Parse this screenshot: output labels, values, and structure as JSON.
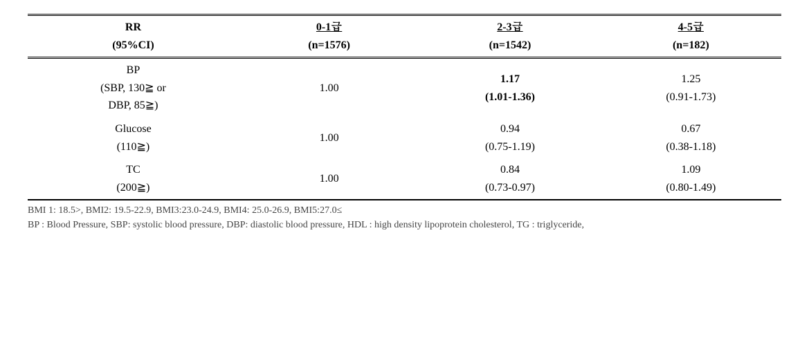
{
  "header": {
    "rr_line1": "RR",
    "rr_line2": "(95%CI)",
    "col1_line1": "0-1급",
    "col1_line2": "(n=1576)",
    "col2_line1": "2-3급",
    "col2_line2": "(n=1542)",
    "col3_line1": "4-5급",
    "col3_line2": "(n=182)"
  },
  "rows": {
    "bp": {
      "label_line1": "BP",
      "label_line2": "(SBP, 130≧ or",
      "label_line3": "DBP, 85≧)",
      "ref": "1.00",
      "c2_val": "1.17",
      "c2_ci": "(1.01-1.36)",
      "c3_val": "1.25",
      "c3_ci": "(0.91-1.73)"
    },
    "glucose": {
      "label_line1": "Glucose",
      "label_line2": "(110≧)",
      "ref": "1.00",
      "c2_val": "0.94",
      "c2_ci": "(0.75-1.19)",
      "c3_val": "0.67",
      "c3_ci": "(0.38-1.18)"
    },
    "tc": {
      "label_line1": "TC",
      "label_line2": "(200≧)",
      "ref": "1.00",
      "c2_val": "0.84",
      "c2_ci": "(0.73-0.97)",
      "c3_val": "1.09",
      "c3_ci": "(0.80-1.49)"
    }
  },
  "footnote": {
    "line1": "BMI 1: 18.5>, BMI2: 19.5-22.9, BMI3:23.0-24.9, BMI4: 25.0-26.9, BMI5:27.0≤",
    "line2": "BP : Blood Pressure, SBP: systolic blood pressure, DBP: diastolic blood pressure, HDL : high density lipoprotein cholesterol, TG : triglyceride,"
  },
  "style": {
    "font_family": "Times New Roman, Batang, serif",
    "body_fontsize_pt": 12,
    "footnote_fontsize_pt": 10,
    "text_color": "#000000",
    "footnote_color": "#444444",
    "background_color": "#ffffff",
    "border_color": "#000000",
    "header_top_border": "3px double",
    "header_bottom_border": "3px double",
    "body_bottom_border": "2px solid",
    "col_widths_pct": [
      28,
      24,
      24,
      24
    ],
    "bold_cells": [
      "rows.bp.c2_val",
      "rows.bp.c2_ci"
    ]
  }
}
